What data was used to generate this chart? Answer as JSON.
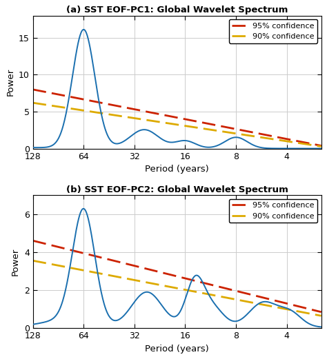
{
  "title_a": "(a) SST EOF-PC1: Global Wavelet Spectrum",
  "title_b": "(b) SST EOF-PC2: Global Wavelet Spectrum",
  "xlabel": "Period (years)",
  "ylabel": "Power",
  "legend_95": "95% confidence",
  "legend_90": "90% confidence",
  "xtick_values": [
    128,
    64,
    32,
    16,
    8,
    4
  ],
  "ylim_a": [
    0,
    18
  ],
  "ylim_b": [
    0,
    7
  ],
  "yticks_a": [
    0,
    5,
    10,
    15
  ],
  "yticks_b": [
    0,
    2,
    4,
    6
  ],
  "line_color": "#1a6faf",
  "conf95_color": "#cc2200",
  "conf90_color": "#ddaa00",
  "bg_color": "#ffffff",
  "grid_color": "#cccccc"
}
